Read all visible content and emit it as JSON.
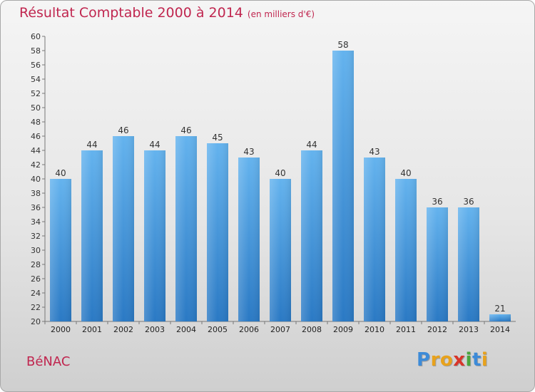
{
  "chart_data": {
    "type": "bar",
    "title": "Résultat Comptable 2000 à 2014",
    "subtitle": "(en milliers d'€)",
    "categories": [
      "2000",
      "2001",
      "2002",
      "2003",
      "2004",
      "2005",
      "2006",
      "2007",
      "2008",
      "2009",
      "2010",
      "2011",
      "2012",
      "2013",
      "2014"
    ],
    "values": [
      40,
      44,
      46,
      44,
      46,
      45,
      43,
      40,
      44,
      58,
      43,
      40,
      36,
      36,
      21
    ],
    "ylim": [
      20,
      60
    ],
    "ytick_step": 2,
    "xlabel": "",
    "ylabel": "",
    "grid": false,
    "bar_color_top": "#64b3ee",
    "bar_color_bottom": "#2a79c4"
  },
  "footer": {
    "city": "BéNAC",
    "logo_letters": [
      "P",
      "r",
      "o",
      "x",
      "i",
      "t",
      "i"
    ],
    "logo_colors": [
      "#3d8bd8",
      "#e8a21c",
      "#e8a21c",
      "#d8352a",
      "#4aa63c",
      "#3d8bd8",
      "#e8a21c"
    ]
  }
}
